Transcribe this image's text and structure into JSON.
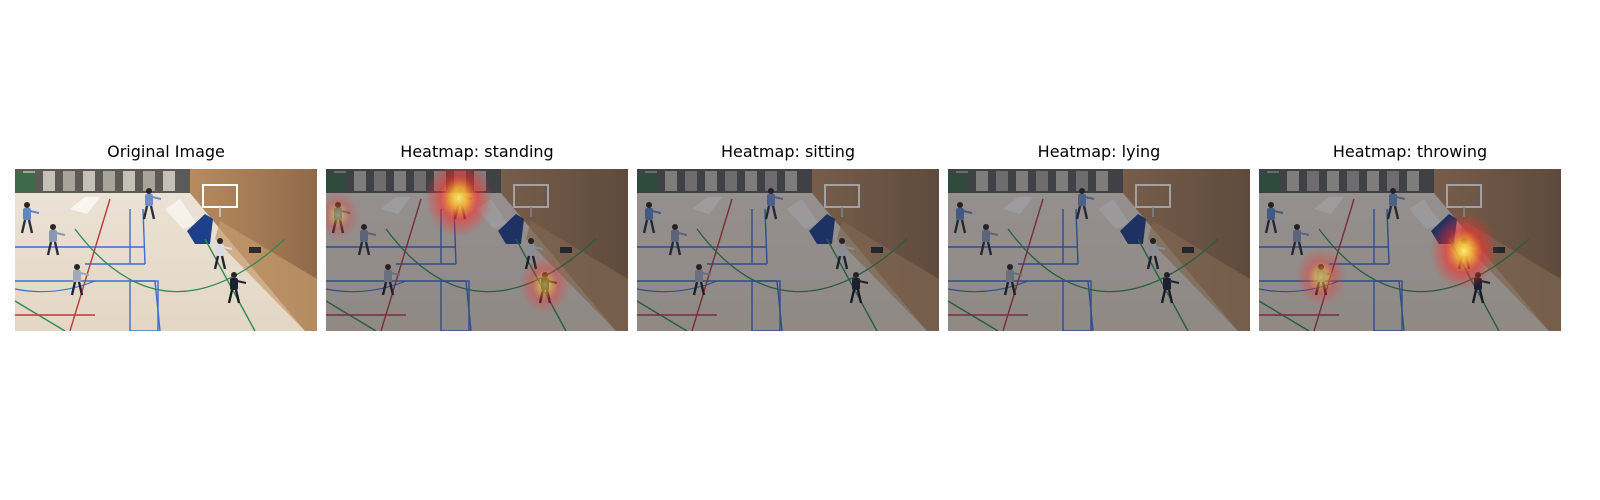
{
  "panels": [
    {
      "title": "Original Image",
      "overlay": "none",
      "dimmed": false,
      "hotspots": []
    },
    {
      "title": "Heatmap: standing",
      "overlay": "heatmap",
      "dimmed": true,
      "hotspots": [
        {
          "target": "player-far-left",
          "intensity": 0.45
        },
        {
          "target": "player-near-basket",
          "intensity": 1.0
        },
        {
          "target": "player-right-dark",
          "intensity": 0.6
        }
      ]
    },
    {
      "title": "Heatmap: sitting",
      "overlay": "heatmap",
      "dimmed": true,
      "hotspots": []
    },
    {
      "title": "Heatmap: lying",
      "overlay": "heatmap",
      "dimmed": true,
      "hotspots": []
    },
    {
      "title": "Heatmap: throwing",
      "overlay": "heatmap",
      "dimmed": true,
      "hotspots": [
        {
          "target": "player-center-left",
          "intensity": 0.6
        },
        {
          "target": "player-by-blue-mat",
          "intensity": 1.0
        }
      ]
    }
  ],
  "colors": {
    "floor": "#e3d6c4",
    "wall": "#a37d57",
    "court_blue": "#3b6fd0",
    "court_red": "#b83a3a",
    "court_green": "#2f8a55",
    "heat_core": "#fff26a",
    "heat_outer": "#ff2a2a",
    "dim_overlay": "#1c1f2e"
  }
}
